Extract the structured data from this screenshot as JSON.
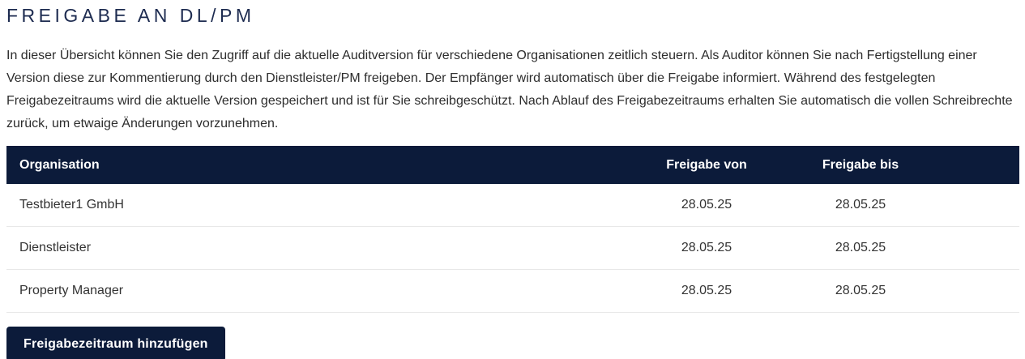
{
  "colors": {
    "navy_header": "#0c1b3a",
    "title_text": "#1d2b50",
    "body_text": "#2d2d2d",
    "cell_text": "#333333",
    "row_separator": "#e8e8e8",
    "header_text": "#ffffff"
  },
  "page": {
    "title": "FREIGABE AN DL/PM",
    "description": "In dieser Übersicht können Sie den Zugriff auf die aktuelle Auditversion für verschiedene Organisationen zeitlich steuern. Als Auditor können Sie nach Fertig­stellung einer Version diese zur Kommentierung durch den Dienstleister/PM freigeben. Der Empfänger wird automatisch über die Freigabe informiert. Wäh­rend des festgelegten Freigabezeitraums wird die aktuelle Version gespeichert und ist für Sie schreibgeschützt. Nach Ablauf des Freigabezeitraums erhalten Sie automatisch die vollen Schreibrechte zurück, um etwaige Änderungen vorzunehmen."
  },
  "table": {
    "columns": [
      "Organisation",
      "Freigabe von",
      "Freigabe bis"
    ],
    "rows": [
      {
        "organisation": "Testbieter1 GmbH",
        "freigabe_von": "28.05.25",
        "freigabe_bis": "28.05.25"
      },
      {
        "organisation": "Dienstleister",
        "freigabe_von": "28.05.25",
        "freigabe_bis": "28.05.25"
      },
      {
        "organisation": "Property Manager",
        "freigabe_von": "28.05.25",
        "freigabe_bis": "28.05.25"
      }
    ]
  },
  "actions": {
    "add_button_label": "Freigabezeitraum hinzufügen"
  }
}
